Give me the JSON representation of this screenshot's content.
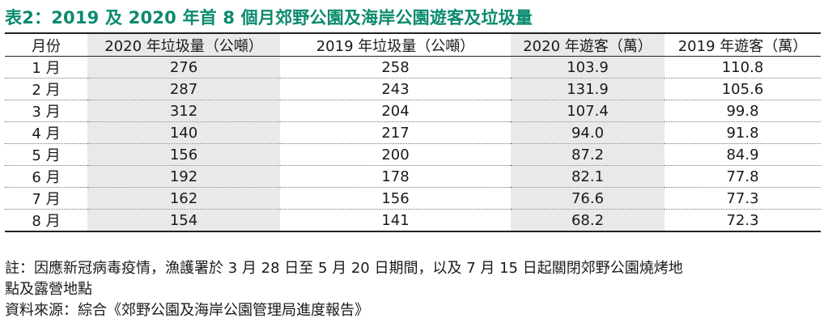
{
  "title": "表2：2019 及 2020 年首 8 個月郊野公園及海岸公園遊客及垃圾量",
  "table": {
    "headers": [
      "月份",
      "2020 年垃圾量（公噸）",
      "2019 年垃圾量（公噸）",
      "2020 年遊客（萬）",
      "2019 年遊客（萬）"
    ],
    "rows": [
      [
        "1 月",
        "276",
        "258",
        "103.9",
        "110.8"
      ],
      [
        "2 月",
        "287",
        "243",
        "131.9",
        "105.6"
      ],
      [
        "3 月",
        "312",
        "204",
        "107.4",
        "99.8"
      ],
      [
        "4 月",
        "140",
        "217",
        "94.0",
        "91.8"
      ],
      [
        "5 月",
        "156",
        "200",
        "87.2",
        "84.9"
      ],
      [
        "6 月",
        "192",
        "178",
        "82.1",
        "77.8"
      ],
      [
        "7 月",
        "162",
        "156",
        "76.6",
        "77.3"
      ],
      [
        "8 月",
        "154",
        "141",
        "68.2",
        "72.3"
      ]
    ]
  },
  "notes": {
    "line1": "註：因應新冠病毒疫情，漁護署於 3 月 28 日至 5 月 20 日期間，以及 7 月 15 日起關閉郊野公園燒烤地",
    "line2": "點及露營地點",
    "source": "資料來源：綜合《郊野公園及海岸公園管理局進度報告》"
  },
  "colors": {
    "title": "#0a8a6e",
    "shade": "#e9e9e9"
  }
}
